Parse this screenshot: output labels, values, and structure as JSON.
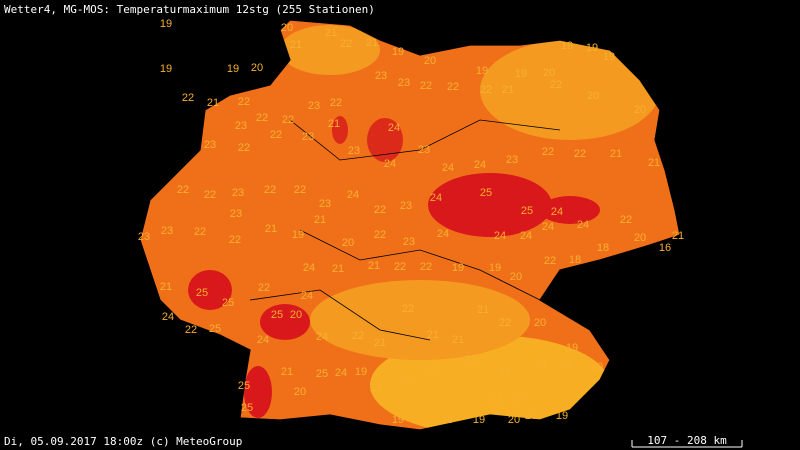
{
  "header": {
    "title": "Wetter4, MG-MOS: Temperaturmaximum 12stg (255 Stationen)"
  },
  "footer": {
    "timestamp": "Di, 05.09.2017 18:00z (c) MeteoGroup",
    "scale": "107 - 208 km"
  },
  "stations": {
    "values": [
      19,
      19,
      19,
      20,
      20,
      21,
      21,
      22,
      21,
      19,
      20,
      19,
      19,
      20,
      19,
      19,
      19,
      22,
      21,
      22,
      22,
      22,
      23,
      22,
      23,
      23,
      22,
      22,
      22,
      21,
      22,
      20,
      20,
      23,
      23,
      22,
      22,
      23,
      21,
      23,
      24,
      24,
      23,
      24,
      24,
      23,
      22,
      22,
      21,
      21,
      22,
      22,
      23,
      22,
      22,
      23,
      24,
      22,
      23,
      24,
      25,
      25,
      24,
      24,
      22,
      23,
      23,
      22,
      23,
      22,
      21,
      19,
      21,
      20,
      22,
      23,
      24,
      24,
      24,
      24,
      18,
      18,
      20,
      16,
      21,
      21,
      25,
      25,
      25,
      20,
      24,
      21,
      21,
      22,
      22,
      19,
      19,
      20,
      22,
      24,
      22,
      25,
      22,
      24,
      24,
      22,
      21,
      22,
      21,
      21,
      21,
      22,
      20,
      19,
      20,
      24,
      25,
      25,
      21,
      20,
      25,
      24,
      19,
      21,
      20,
      21,
      21,
      21,
      21,
      22,
      19,
      18,
      19,
      20,
      20,
      19,
      20,
      21
    ]
  }
}
